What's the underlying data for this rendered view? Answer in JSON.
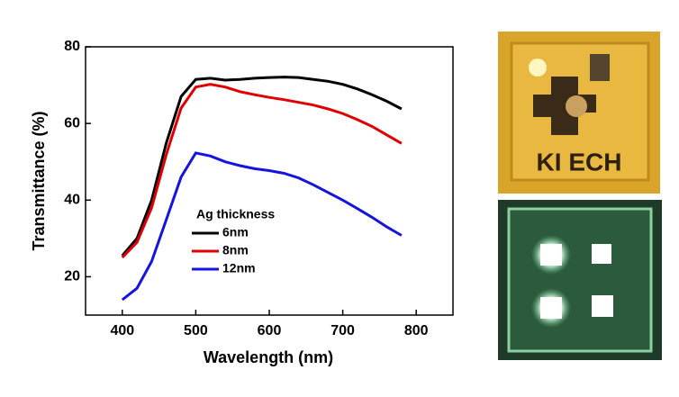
{
  "chart_data": {
    "type": "line",
    "xlabel": "Wavelength (nm)",
    "ylabel": "Transmittance (%)",
    "legend_title": "Ag thickness",
    "x": [
      400,
      420,
      440,
      460,
      480,
      500,
      520,
      540,
      560,
      580,
      600,
      620,
      640,
      660,
      680,
      700,
      720,
      740,
      760,
      780
    ],
    "series": [
      {
        "name": "6nm",
        "color": "#000000",
        "values": [
          25.5,
          30,
          40,
          55,
          67,
          71.5,
          71.8,
          71.3,
          71.5,
          71.8,
          72,
          72.1,
          72,
          71.5,
          71,
          70.2,
          69,
          67.5,
          65.8,
          63.8
        ]
      },
      {
        "name": "8nm",
        "color": "#e00000",
        "values": [
          25,
          29,
          38,
          52,
          64,
          69.5,
          70.2,
          69.5,
          68.3,
          67.5,
          66.8,
          66.2,
          65.5,
          64.8,
          63.8,
          62.6,
          61,
          59.2,
          57,
          54.8
        ]
      },
      {
        "name": "12nm",
        "color": "#1414e0",
        "values": [
          14,
          17,
          24,
          35,
          46,
          52.3,
          51.5,
          50,
          49,
          48.2,
          47.7,
          47,
          45.8,
          44,
          42,
          40,
          37.8,
          35.5,
          33,
          30.8
        ]
      }
    ],
    "xlim": [
      350,
      850
    ],
    "xticks": [
      400,
      500,
      600,
      700,
      800
    ],
    "ylim": [
      10,
      80
    ],
    "yticks": [
      20,
      40,
      60,
      80
    ],
    "grid": false
  },
  "photo_text": "KI ECH"
}
